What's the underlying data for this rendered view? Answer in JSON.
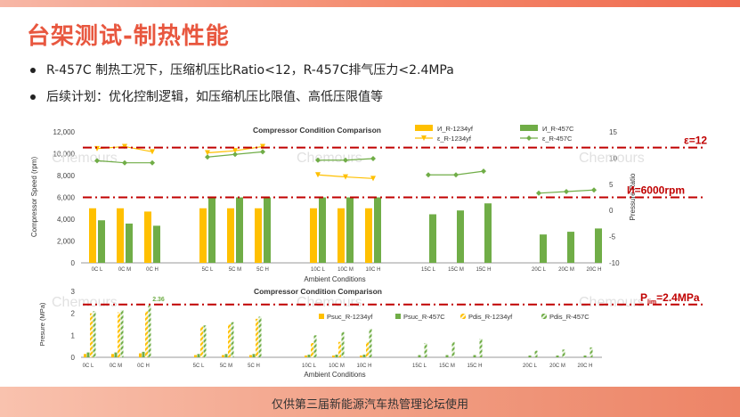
{
  "page": {
    "title": "台架测试-制热性能",
    "bullets": [
      "R-457C 制热工况下，压缩机压比Ratio<12，R-457C排气压力<2.4MPa",
      "后续计划：优化控制逻辑，如压缩机压比限值、高低压限值等"
    ],
    "footer": "仅供第三届新能源汽车热管理论坛使用",
    "watermark": "Chemours"
  },
  "colors": {
    "r1234yf": "#ffc000",
    "r457c": "#70ad47",
    "refline": "#c00000",
    "title": "#e8573f"
  },
  "chart_data": [
    {
      "type": "bar",
      "title": "Compressor Condition Comparison",
      "xlabel": "Ambient Conditions",
      "ylabel": "Compressor Speed (rpm)",
      "y2label": "Pressure Ratio",
      "ylim": [
        0,
        12000
      ],
      "y2lim": [
        -10,
        15
      ],
      "yticks": [
        "12,000",
        "10,000",
        "8,000",
        "6,000",
        "4,000",
        "2,000",
        "0"
      ],
      "y2ticks": [
        "15",
        "10",
        "5",
        "0",
        "-5",
        "-10"
      ],
      "categories": [
        "0C L",
        "0C M",
        "0C H",
        "5C L",
        "5C M",
        "5C H",
        "10C L",
        "10C M",
        "10C H",
        "15C L",
        "15C M",
        "15C H",
        "20C L",
        "20C M",
        "20C H"
      ],
      "series": [
        {
          "name": "И_R-1234yf",
          "kind": "bar",
          "axis": "left",
          "values": [
            5000,
            5000,
            4700,
            5000,
            5000,
            5000,
            5000,
            5000,
            5000,
            null,
            null,
            null,
            null,
            null,
            null
          ]
        },
        {
          "name": "И_R-457C",
          "kind": "bar",
          "axis": "left",
          "values": [
            3900,
            3600,
            3400,
            6000,
            6000,
            6000,
            6000,
            6000,
            6000,
            4450,
            4800,
            5450,
            2600,
            2850,
            3150
          ]
        },
        {
          "name": "ε_R-1234yf",
          "kind": "line",
          "axis": "right",
          "values": [
            11.8,
            12.2,
            11.2,
            11.0,
            11.4,
            12.2,
            6.8,
            6.4,
            6.1,
            null,
            null,
            null,
            null,
            null,
            null
          ]
        },
        {
          "name": "ε_R-457C",
          "kind": "line",
          "axis": "right",
          "values": [
            9.5,
            9.1,
            9.1,
            10.2,
            10.7,
            11.2,
            9.6,
            9.6,
            9.9,
            6.8,
            6.8,
            7.5,
            3.3,
            3.6,
            3.9
          ]
        }
      ],
      "annotations": [
        {
          "text": "ε=12",
          "y2": 12
        },
        {
          "text": "И=6000rpm",
          "y": 6000
        }
      ]
    },
    {
      "type": "bar",
      "title": "Compressor Condition Comparison",
      "xlabel": "Ambient Conditions",
      "ylabel": "Presure (MPa)",
      "ylim": [
        0,
        3
      ],
      "yticks": [
        "3",
        "2",
        "1",
        "0"
      ],
      "categories": [
        "0C L",
        "0C M",
        "0C H",
        "5C L",
        "5C M",
        "5C H",
        "10C L",
        "10C M",
        "10C H",
        "15C L",
        "15C M",
        "15C H",
        "20C L",
        "20C M",
        "20C H"
      ],
      "series": [
        {
          "name": "Psuc_R-1234yf",
          "pattern": "solid",
          "values": [
            0.15,
            0.15,
            0.18,
            0.1,
            0.1,
            0.1,
            0.08,
            0.08,
            0.08,
            null,
            null,
            null,
            null,
            null,
            null
          ]
        },
        {
          "name": "Psuc_R-457C",
          "pattern": "solid",
          "values": [
            0.22,
            0.22,
            0.25,
            0.15,
            0.15,
            0.15,
            0.12,
            0.12,
            0.12,
            0.1,
            0.1,
            0.1,
            0.08,
            0.08,
            0.08
          ]
        },
        {
          "name": "Pdis_R-1234yf",
          "pattern": "hatched",
          "values": [
            2.0,
            2.05,
            2.1,
            1.4,
            1.5,
            1.75,
            0.65,
            0.7,
            0.7,
            null,
            null,
            null,
            null,
            null,
            null
          ]
        },
        {
          "name": "Pdis_R-457C",
          "pattern": "hatched",
          "values": [
            2.1,
            2.15,
            2.36,
            1.45,
            1.6,
            1.85,
            1.0,
            1.15,
            1.3,
            0.65,
            0.7,
            0.85,
            0.3,
            0.35,
            0.45
          ]
        }
      ],
      "annotations": [
        {
          "text": "2.36",
          "y": 2.36
        },
        {
          "text": "P",
          "sub": "lim",
          "suffix": "=2.4MPa",
          "y": 2.4
        }
      ]
    }
  ]
}
